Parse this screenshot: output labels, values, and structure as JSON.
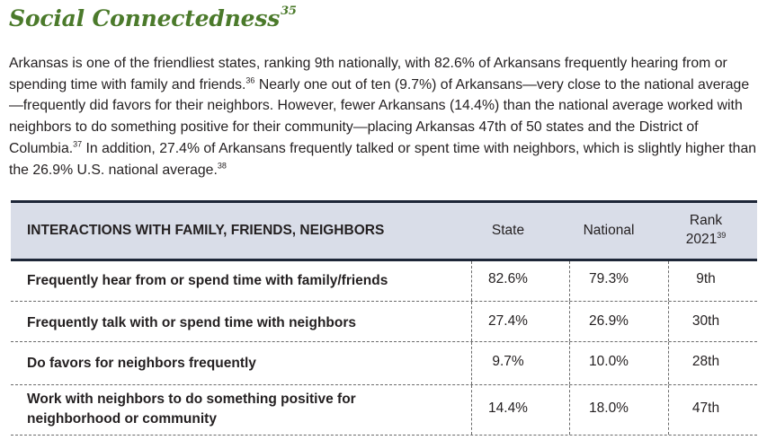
{
  "heading": {
    "title": "Social Connectedness",
    "footnote": "35"
  },
  "intro": {
    "part1": "Arkansas is one of the friendliest states, ranking 9th nationally, with 82.6% of Arkansans frequently hearing from or spending time with family and friends.",
    "ref1": "36",
    "part2": " Nearly one out of ten (9.7%) of Arkansans—very close to the national average—frequently did favors for their neighbors. However, fewer Arkansans (14.4%) than the national average worked with neighbors to do something positive for their community—placing Arkansas 47th of 50 states and the District of Columbia.",
    "ref2": "37",
    "part3": " In addition, 27.4% of Arkansans frequently talked or spent time with neighbors, which is slightly higher than the 26.9% U.S. national average.",
    "ref3": "38"
  },
  "table": {
    "headers": {
      "label": "INTERACTIONS WITH FAMILY, FRIENDS, NEIGHBORS",
      "state": "State",
      "national": "National",
      "rank_line1": "Rank",
      "rank_line2": "2021",
      "rank_ref": "39"
    },
    "rows": [
      {
        "label": "Frequently hear from or spend time with family/friends",
        "state": "82.6%",
        "national": "79.3%",
        "rank": "9th"
      },
      {
        "label": "Frequently talk with or spend time with neighbors",
        "state": "27.4%",
        "national": "26.9%",
        "rank": "30th"
      },
      {
        "label": "Do favors for neighbors frequently",
        "state": "9.7%",
        "national": "10.0%",
        "rank": "28th"
      },
      {
        "label": "Work with neighbors to do something positive for neighborhood or community",
        "state": "14.4%",
        "national": "18.0%",
        "rank": "47th"
      }
    ]
  },
  "colors": {
    "heading": "#4b7a2b",
    "table_header_bg": "#d9dde8",
    "rule": "#1d2637",
    "text": "#231f20"
  }
}
